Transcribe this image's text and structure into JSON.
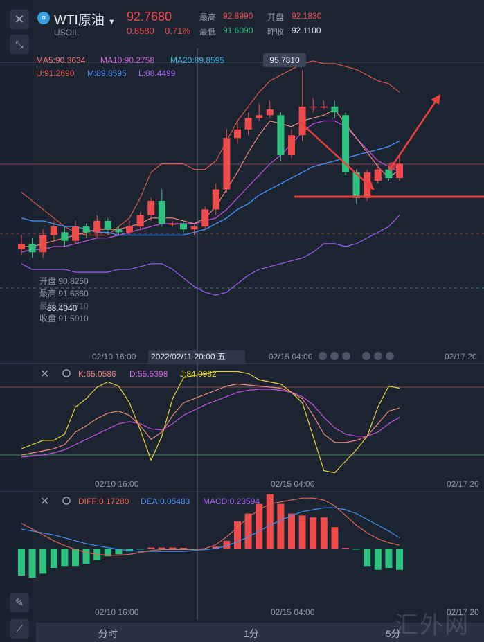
{
  "header": {
    "symbol_badge": "¤",
    "symbol_name": "WTI原油",
    "symbol_code": "USOIL",
    "price": "92.7680",
    "change": "0.8580",
    "change_pct": "0.71%",
    "high_label": "最高",
    "high_value": "92.8990",
    "open_label": "开盘",
    "open_value": "92.1830",
    "low_label": "最低",
    "low_value": "91.6090",
    "prev_close_label": "昨收",
    "prev_close_value": "92.1100"
  },
  "main_panel": {
    "ma5": "MA5:90.3634",
    "ma10": "MA10:90.2758",
    "ma20": "MA20:89.8595",
    "boll_u": "U:91.2690",
    "boll_m": "M:89.8595",
    "boll_l": "L:88.4499",
    "peak_label": "95.7810",
    "low_label": "88.4040",
    "crosshair_date": "2022/02/11 20:00 五",
    "x_labels": [
      "02/10 16:00",
      "02/15 04:00",
      "02/17 20"
    ],
    "info": {
      "open": "开盘 90.8250",
      "high": "最高 91.6360",
      "low": "最低 90.6710",
      "close": "收盘 91.5910"
    }
  },
  "kdj_panel": {
    "k": "K:65.0586",
    "d": "D:55.5398",
    "j": "J:84.0982",
    "x_labels": [
      "02/10 16:00",
      "02/15 04:00",
      "02/17 20"
    ]
  },
  "macd_panel": {
    "diff": "DIFF:0.17280",
    "dea": "DEA:0.05483",
    "macd": "MACD:0.23594",
    "x_labels": [
      "02/10 16:00",
      "02/15 04:00",
      "02/17 20"
    ]
  },
  "timeframes": [
    "分时",
    "1分",
    "5分"
  ],
  "watermark": "汇外网",
  "colors": {
    "up": "#ef4b4b",
    "down": "#2ec27e",
    "bg": "#1c2432"
  },
  "icons": [
    "close-icon",
    "collapse-icon",
    "settings-icon",
    "pen-icon",
    "line-tool-icon"
  ],
  "chart_data": {
    "type": "candlestick",
    "ylim": [
      88.0,
      96.0
    ],
    "candles": [
      {
        "o": 89.5,
        "c": 89.7,
        "h": 90.0,
        "l": 89.3
      },
      {
        "o": 89.7,
        "c": 89.4,
        "h": 89.9,
        "l": 89.2
      },
      {
        "o": 89.4,
        "c": 90.0,
        "h": 90.2,
        "l": 89.2
      },
      {
        "o": 90.0,
        "c": 90.3,
        "h": 90.5,
        "l": 89.8
      },
      {
        "o": 90.1,
        "c": 89.8,
        "h": 90.3,
        "l": 89.6
      },
      {
        "o": 89.8,
        "c": 90.3,
        "h": 90.5,
        "l": 89.7
      },
      {
        "o": 90.3,
        "c": 90.1,
        "h": 90.4,
        "l": 89.9
      },
      {
        "o": 90.1,
        "c": 90.5,
        "h": 90.7,
        "l": 89.9
      },
      {
        "o": 90.5,
        "c": 90.2,
        "h": 90.6,
        "l": 90.0
      },
      {
        "o": 90.2,
        "c": 90.1,
        "h": 90.3,
        "l": 90.0
      },
      {
        "o": 90.1,
        "c": 90.3,
        "h": 90.5,
        "l": 90.0
      },
      {
        "o": 90.3,
        "c": 90.7,
        "h": 90.8,
        "l": 90.2
      },
      {
        "o": 90.7,
        "c": 91.2,
        "h": 91.3,
        "l": 90.5
      },
      {
        "o": 91.2,
        "c": 90.4,
        "h": 91.6,
        "l": 90.3
      },
      {
        "o": 90.4,
        "c": 90.4,
        "h": 90.5,
        "l": 90.3
      },
      {
        "o": 90.4,
        "c": 90.2,
        "h": 90.5,
        "l": 90.1
      },
      {
        "o": 90.2,
        "c": 90.3,
        "h": 90.4,
        "l": 90.0
      },
      {
        "o": 90.3,
        "c": 90.9,
        "h": 91.0,
        "l": 90.2
      },
      {
        "o": 90.9,
        "c": 91.6,
        "h": 91.8,
        "l": 90.7
      },
      {
        "o": 91.6,
        "c": 93.4,
        "h": 93.7,
        "l": 91.5
      },
      {
        "o": 93.4,
        "c": 93.7,
        "h": 94.0,
        "l": 93.2
      },
      {
        "o": 93.7,
        "c": 94.1,
        "h": 94.3,
        "l": 93.5
      },
      {
        "o": 94.1,
        "c": 94.2,
        "h": 94.6,
        "l": 94.0
      },
      {
        "o": 94.2,
        "c": 94.4,
        "h": 94.7,
        "l": 94.1
      },
      {
        "o": 94.2,
        "c": 92.8,
        "h": 94.3,
        "l": 92.6
      },
      {
        "o": 92.8,
        "c": 93.5,
        "h": 93.7,
        "l": 92.7
      },
      {
        "o": 93.5,
        "c": 94.5,
        "h": 95.78,
        "l": 93.3
      },
      {
        "o": 94.5,
        "c": 94.5,
        "h": 94.8,
        "l": 94.3
      },
      {
        "o": 94.5,
        "c": 94.5,
        "h": 94.7,
        "l": 94.4
      },
      {
        "o": 94.5,
        "c": 94.3,
        "h": 94.7,
        "l": 94.1
      },
      {
        "o": 94.2,
        "c": 92.2,
        "h": 94.3,
        "l": 92.1
      },
      {
        "o": 92.2,
        "c": 91.3,
        "h": 92.3,
        "l": 91.1
      },
      {
        "o": 91.3,
        "c": 92.2,
        "h": 92.3,
        "l": 91.2
      },
      {
        "o": 91.9,
        "c": 92.3,
        "h": 92.5,
        "l": 91.8
      },
      {
        "o": 92.3,
        "c": 92.0,
        "h": 92.4,
        "l": 91.9
      },
      {
        "o": 92.0,
        "c": 92.5,
        "h": 92.8,
        "l": 91.9
      }
    ],
    "ma5": [
      89.6,
      89.6,
      89.7,
      89.8,
      89.9,
      90.0,
      90.1,
      90.2,
      90.2,
      90.2,
      90.3,
      90.4,
      90.6,
      90.6,
      90.6,
      90.5,
      90.4,
      90.6,
      91.0,
      91.6,
      92.2,
      92.9,
      93.5,
      94.0,
      93.9,
      93.8,
      94.0,
      94.1,
      94.2,
      94.4,
      93.9,
      93.4,
      92.9,
      92.4,
      92.0,
      92.3
    ],
    "ma10": [
      89.4,
      89.5,
      89.5,
      89.6,
      89.6,
      89.7,
      89.8,
      89.9,
      89.9,
      90.0,
      90.1,
      90.2,
      90.3,
      90.4,
      90.4,
      90.4,
      90.4,
      90.5,
      90.6,
      90.9,
      91.3,
      91.7,
      92.1,
      92.5,
      92.8,
      93.2,
      93.6,
      93.9,
      94.0,
      94.0,
      93.8,
      93.4,
      93.0,
      92.6,
      92.4,
      92.2
    ],
    "ma20": [
      90.6,
      90.5,
      90.5,
      90.4,
      90.3,
      90.3,
      90.2,
      90.1,
      90.1,
      90.0,
      90.0,
      90.0,
      90.0,
      90.0,
      90.0,
      90.0,
      90.1,
      90.2,
      90.4,
      90.6,
      90.9,
      91.1,
      91.4,
      91.6,
      91.8,
      92.0,
      92.2,
      92.4,
      92.5,
      92.6,
      92.7,
      92.8,
      92.9,
      93.0,
      93.1,
      93.3
    ],
    "boll_u": [
      91.5,
      91.2,
      90.9,
      90.6,
      90.3,
      90.1,
      90.0,
      90.0,
      90.0,
      90.3,
      90.6,
      91.3,
      92.2,
      92.5,
      92.5,
      92.5,
      92.3,
      92.3,
      92.6,
      93.3,
      94.0,
      94.5,
      95.0,
      95.4,
      95.6,
      95.8,
      96.0,
      96.1,
      96.0,
      96.0,
      95.9,
      95.8,
      95.6,
      95.4,
      95.3,
      95.0
    ],
    "boll_l": [
      89.0,
      88.8,
      88.8,
      88.8,
      88.8,
      88.7,
      88.7,
      88.7,
      88.7,
      88.8,
      88.8,
      88.9,
      89.0,
      89.0,
      88.8,
      88.5,
      88.2,
      88.0,
      87.9,
      88.0,
      88.3,
      88.6,
      88.8,
      88.9,
      89.0,
      89.1,
      89.2,
      89.4,
      89.7,
      89.7,
      89.6,
      89.7,
      89.9,
      90.1,
      90.3,
      90.7
    ],
    "kdj_k": [
      20,
      22,
      24,
      26,
      30,
      42,
      48,
      55,
      60,
      62,
      58,
      48,
      35,
      42,
      58,
      70,
      74,
      78,
      82,
      86,
      88,
      87,
      86,
      85,
      84,
      80,
      74,
      58,
      40,
      32,
      32,
      34,
      38,
      50,
      62,
      65
    ],
    "kdj_d": [
      18,
      19,
      20,
      22,
      25,
      30,
      35,
      40,
      45,
      50,
      52,
      50,
      45,
      44,
      50,
      58,
      63,
      68,
      72,
      76,
      80,
      82,
      83,
      83,
      82,
      80,
      76,
      68,
      56,
      46,
      40,
      38,
      38,
      42,
      50,
      56
    ],
    "kdj_j": [
      26,
      30,
      34,
      34,
      40,
      66,
      74,
      85,
      90,
      86,
      70,
      44,
      15,
      38,
      74,
      94,
      96,
      98,
      100,
      100,
      100,
      98,
      92,
      90,
      88,
      80,
      70,
      38,
      5,
      3,
      14,
      25,
      38,
      66,
      86,
      84
    ],
    "macd_diff": [
      1.3,
      1.0,
      0.7,
      0.4,
      0.15,
      -0.05,
      -0.2,
      -0.3,
      -0.35,
      -0.35,
      -0.3,
      -0.2,
      -0.1,
      -0.05,
      -0.05,
      -0.05,
      -0.05,
      0.0,
      0.2,
      0.6,
      1.1,
      1.6,
      2.0,
      2.3,
      2.4,
      2.5,
      2.6,
      2.6,
      2.5,
      2.2,
      1.7,
      1.2,
      0.8,
      0.5,
      0.3,
      0.17
    ],
    "macd_dea": [
      1.0,
      0.9,
      0.8,
      0.7,
      0.55,
      0.4,
      0.25,
      0.15,
      0.05,
      -0.05,
      -0.1,
      -0.15,
      -0.15,
      -0.15,
      -0.15,
      -0.15,
      -0.1,
      -0.05,
      0.0,
      0.15,
      0.35,
      0.6,
      0.9,
      1.2,
      1.45,
      1.7,
      1.9,
      2.0,
      2.1,
      2.1,
      2.0,
      1.8,
      1.5,
      1.2,
      0.9,
      0.55
    ],
    "macd_hist": [
      -1.4,
      -1.5,
      -1.3,
      -1.0,
      -0.9,
      -0.9,
      -0.8,
      -0.6,
      -0.4,
      -0.3,
      -0.15,
      -0.05,
      0.05,
      0.05,
      0.05,
      0.0,
      -0.05,
      -0.05,
      0.1,
      0.4,
      1.4,
      1.8,
      2.3,
      2.8,
      2.3,
      1.8,
      1.7,
      1.6,
      1.6,
      1.1,
      0.0,
      -0.05,
      -0.9,
      -1.1,
      -1.0,
      -1.1
    ]
  }
}
